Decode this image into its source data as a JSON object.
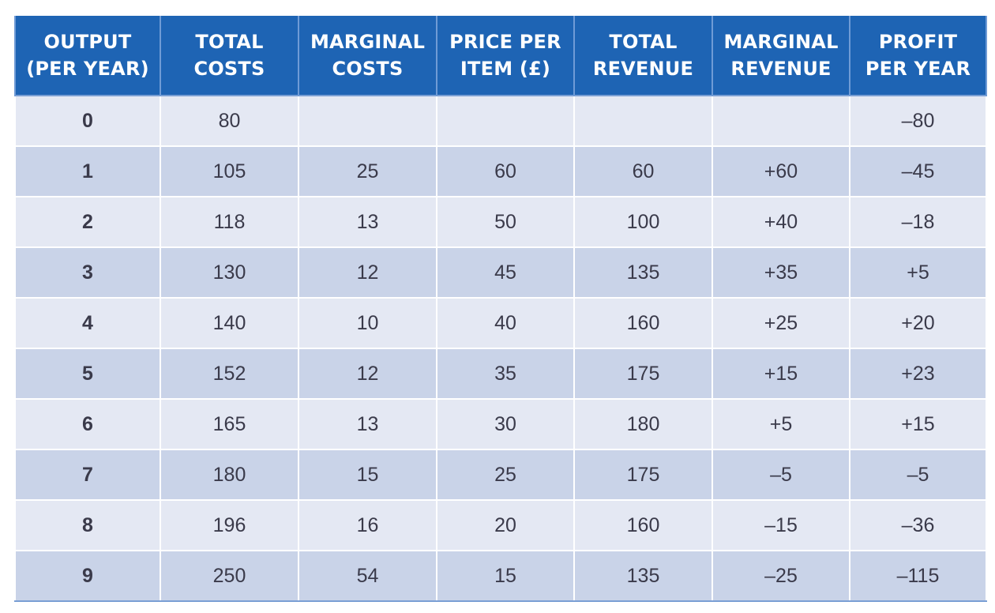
{
  "table": {
    "headers": [
      [
        "OUTPUT",
        "(PER YEAR)"
      ],
      [
        "TOTAL",
        "COSTS"
      ],
      [
        "MARGINAL",
        "COSTS"
      ],
      [
        "PRICE PER",
        "ITEM (£)"
      ],
      [
        "TOTAL",
        "REVENUE"
      ],
      [
        "MARGINAL",
        "REVENUE"
      ],
      [
        "PROFIT",
        "PER YEAR"
      ]
    ],
    "rows": [
      [
        "0",
        "80",
        "",
        "",
        "",
        "",
        "–80"
      ],
      [
        "1",
        "105",
        "25",
        "60",
        "60",
        "+60",
        "–45"
      ],
      [
        "2",
        "118",
        "13",
        "50",
        "100",
        "+40",
        "–18"
      ],
      [
        "3",
        "130",
        "12",
        "45",
        "135",
        "+35",
        "+5"
      ],
      [
        "4",
        "140",
        "10",
        "40",
        "160",
        "+25",
        "+20"
      ],
      [
        "5",
        "152",
        "12",
        "35",
        "175",
        "+15",
        "+23"
      ],
      [
        "6",
        "165",
        "13",
        "30",
        "180",
        "+5",
        "+15"
      ],
      [
        "7",
        "180",
        "15",
        "25",
        "175",
        "–5",
        "–5"
      ],
      [
        "8",
        "196",
        "16",
        "20",
        "160",
        "–15",
        "–36"
      ],
      [
        "9",
        "250",
        "54",
        "15",
        "135",
        "–25",
        "–115"
      ]
    ]
  },
  "colors": {
    "header_bg": "#1e64b4",
    "row_light": "#e4e8f3",
    "row_dark": "#c9d3e8",
    "text": "#3a3a4a"
  }
}
